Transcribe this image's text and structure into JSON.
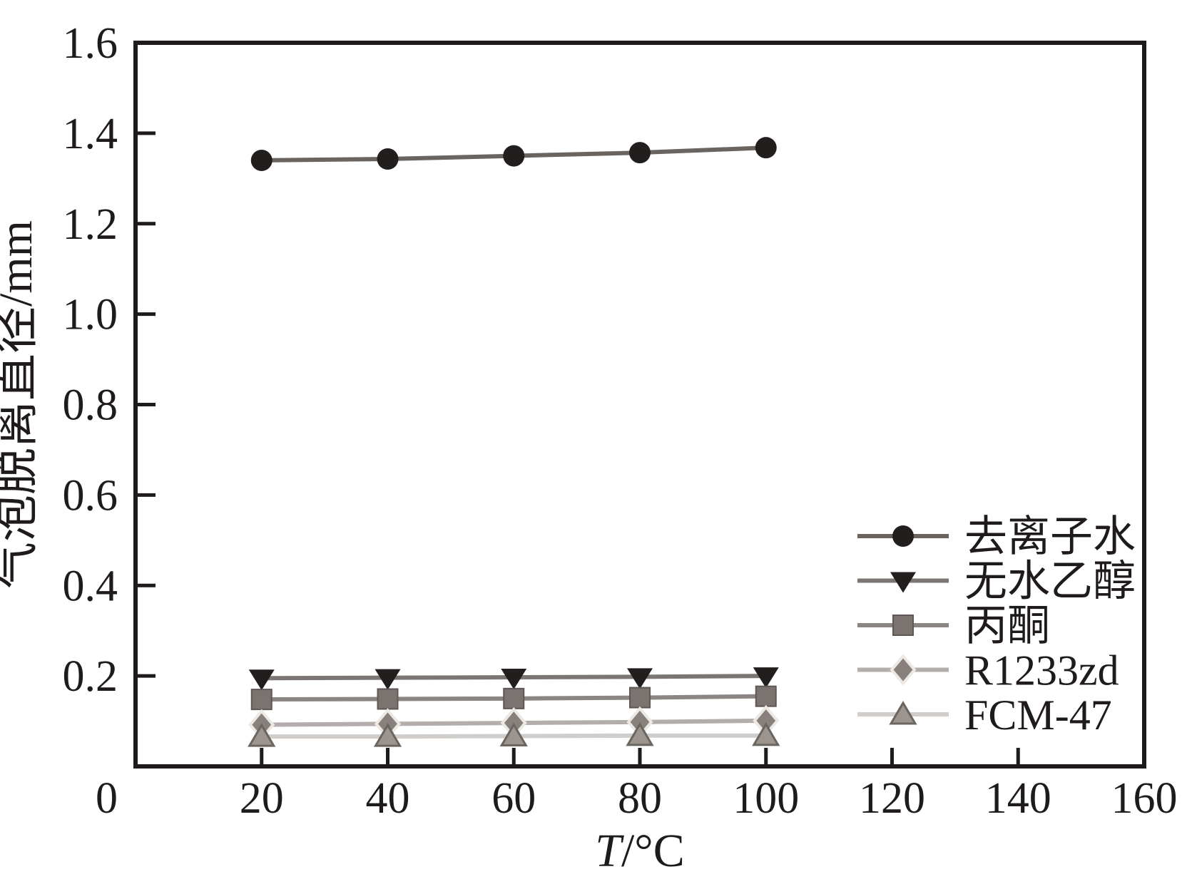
{
  "figure": {
    "background": "#ffffff",
    "frame_color": "#1f1b1a",
    "text_color": "#1f1b1a"
  },
  "chart_data": {
    "type": "line",
    "title": "",
    "xlabel": "T/°C",
    "ylabel": "气泡脱离直径/mm",
    "xlim": [
      0,
      160
    ],
    "ylim": [
      0,
      1.6
    ],
    "grid": false,
    "legend_position": "inside lower-right",
    "origin_label": "0",
    "x_tick_labels": [
      "20",
      "40",
      "60",
      "80",
      "100",
      "120",
      "140",
      "160"
    ],
    "y_tick_labels": [
      "0.2",
      "0.4",
      "0.6",
      "0.8",
      "1.0",
      "1.2",
      "1.4",
      "1.6"
    ],
    "x": [
      20,
      40,
      60,
      80,
      100
    ],
    "series": [
      {
        "name": "去离子水",
        "marker": "circle",
        "marker_color": "#221e1d",
        "line_color": "#6a6461",
        "values": [
          1.34,
          1.343,
          1.35,
          1.357,
          1.368
        ]
      },
      {
        "name": "无水乙醇",
        "marker": "triangle-down",
        "marker_color": "#221e1d",
        "line_color": "#7b7673",
        "values": [
          0.195,
          0.196,
          0.197,
          0.198,
          0.2
        ]
      },
      {
        "name": "丙酮",
        "marker": "square",
        "marker_color": "#7b7370",
        "marker_outline": "#5e5755",
        "line_color": "#8b8683",
        "values": [
          0.148,
          0.149,
          0.15,
          0.152,
          0.155
        ]
      },
      {
        "name": "R1233zd",
        "marker": "diamond",
        "marker_color": "#87807c",
        "marker_outline": "#ece8e4",
        "line_color": "#b3aeab",
        "values": [
          0.092,
          0.094,
          0.096,
          0.098,
          0.101
        ]
      },
      {
        "name": "FCM-47",
        "marker": "triangle-up",
        "marker_color": "#9c948f",
        "marker_outline": "#6b6560",
        "line_color": "#d0cdca",
        "values": [
          0.066,
          0.066,
          0.067,
          0.068,
          0.068
        ]
      }
    ]
  }
}
